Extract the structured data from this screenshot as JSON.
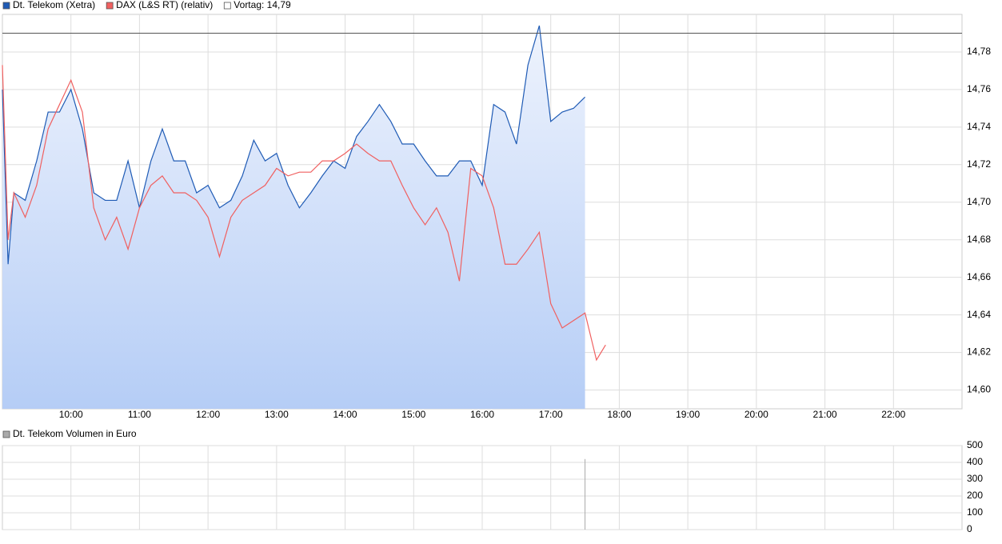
{
  "chart_data": [
    {
      "type": "line",
      "x": [
        9,
        9.083,
        9.167,
        9.333,
        9.5,
        9.667,
        9.833,
        10,
        10.167,
        10.333,
        10.5,
        10.667,
        10.833,
        11,
        11.167,
        11.333,
        11.5,
        11.667,
        11.833,
        12,
        12.167,
        12.333,
        12.5,
        12.667,
        12.833,
        13,
        13.167,
        13.333,
        13.5,
        13.667,
        13.833,
        14,
        14.167,
        14.333,
        14.5,
        14.667,
        14.833,
        15,
        15.167,
        15.333,
        15.5,
        15.667,
        15.833,
        16,
        16.167,
        16.333,
        16.5,
        16.667,
        16.833,
        17,
        17.167,
        17.333,
        17.5,
        17.667,
        17.8
      ],
      "series": [
        {
          "name": "Dt. Telekom (Xetra)",
          "color": "#1f5bb5",
          "area": true,
          "values": [
            14.76,
            14.667,
            14.705,
            14.701,
            14.722,
            14.748,
            14.748,
            14.76,
            14.739,
            14.705,
            14.701,
            14.701,
            14.722,
            14.697,
            14.722,
            14.739,
            14.722,
            14.722,
            14.705,
            14.709,
            14.697,
            14.701,
            14.714,
            14.733,
            14.722,
            14.726,
            14.709,
            14.697,
            14.705,
            14.714,
            14.722,
            14.718,
            14.735,
            14.743,
            14.752,
            14.743,
            14.731,
            14.731,
            14.722,
            14.714,
            14.714,
            14.722,
            14.722,
            14.709,
            14.752,
            14.748,
            14.731,
            14.773,
            14.794,
            14.743,
            14.748,
            14.75,
            14.756,
            null,
            null
          ]
        },
        {
          "name": "DAX (L&S RT) (relativ)",
          "color": "#f06060",
          "values": [
            14.773,
            14.68,
            14.705,
            14.692,
            14.709,
            14.739,
            14.752,
            14.765,
            14.748,
            14.697,
            14.68,
            14.692,
            14.675,
            14.697,
            14.709,
            14.714,
            14.705,
            14.705,
            14.701,
            14.692,
            14.671,
            14.692,
            14.701,
            14.705,
            14.709,
            14.718,
            14.714,
            14.716,
            14.716,
            14.722,
            14.722,
            14.726,
            14.731,
            14.726,
            14.722,
            14.722,
            14.709,
            14.697,
            14.688,
            14.697,
            14.684,
            14.658,
            14.718,
            14.714,
            14.697,
            14.667,
            14.667,
            14.675,
            14.684,
            14.646,
            14.633,
            14.637,
            14.641,
            14.616,
            14.624
          ]
        }
      ],
      "reference_line": {
        "value": 14.79,
        "label": "Vortag: 14,79"
      },
      "xlim": [
        9,
        23
      ],
      "xticks": [
        {
          "value": 10,
          "label": "10:00"
        },
        {
          "value": 11,
          "label": "11:00"
        },
        {
          "value": 12,
          "label": "12:00"
        },
        {
          "value": 13,
          "label": "13:00"
        },
        {
          "value": 14,
          "label": "14:00"
        },
        {
          "value": 15,
          "label": "15:00"
        },
        {
          "value": 16,
          "label": "16:00"
        },
        {
          "value": 17,
          "label": "17:00"
        },
        {
          "value": 18,
          "label": "18:00"
        },
        {
          "value": 19,
          "label": "19:00"
        },
        {
          "value": 20,
          "label": "20:00"
        },
        {
          "value": 21,
          "label": "21:00"
        },
        {
          "value": 22,
          "label": "22:00"
        }
      ],
      "ylim": [
        14.59,
        14.8
      ],
      "yticks": [
        {
          "value": 14.6,
          "label": "14,60"
        },
        {
          "value": 14.62,
          "label": "14,62"
        },
        {
          "value": 14.64,
          "label": "14,64"
        },
        {
          "value": 14.66,
          "label": "14,66"
        },
        {
          "value": 14.68,
          "label": "14,68"
        },
        {
          "value": 14.7,
          "label": "14,70"
        },
        {
          "value": 14.72,
          "label": "14,72"
        },
        {
          "value": 14.74,
          "label": "14,74"
        },
        {
          "value": 14.76,
          "label": "14,76"
        },
        {
          "value": 14.78,
          "label": "14,78"
        }
      ],
      "grid": true
    },
    {
      "type": "bar",
      "series": [
        {
          "name": "Dt. Telekom Volumen in Euro",
          "color": "#aaaaaa",
          "x": [
            17.5
          ],
          "values": [
            420
          ]
        }
      ],
      "xlim": [
        9,
        23
      ],
      "ylim": [
        0,
        500
      ],
      "yticks": [
        0,
        100,
        200,
        300,
        400,
        500
      ],
      "grid": true
    }
  ]
}
